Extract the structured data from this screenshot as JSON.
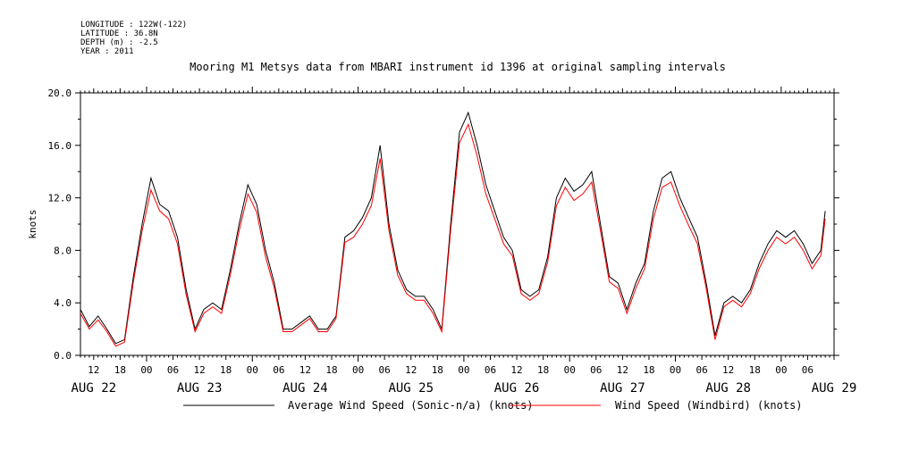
{
  "metadata": {
    "longitude": "LONGITUDE : 122W(-122)",
    "latitude": "LATITUDE : 36.8N",
    "depth": "DEPTH (m) : -2.5",
    "year": "YEAR : 2011"
  },
  "chart_data": {
    "type": "line",
    "title": "Mooring M1 Metsys data from MBARI instrument id 1396 at original sampling intervals",
    "ylabel": "knots",
    "xlabel": "",
    "ylim": [
      0,
      20
    ],
    "yticks": [
      "0.0",
      "4.0",
      "8.0",
      "12.0",
      "16.0",
      "20.0"
    ],
    "xrange_hours": [
      "2011-08-22 09:00",
      "2011-08-29 12:00"
    ],
    "hour_tick_labels": [
      {
        "t": "2011-08-22 12:00",
        "label": "12"
      },
      {
        "t": "2011-08-22 18:00",
        "label": "18"
      },
      {
        "t": "2011-08-23 00:00",
        "label": "00"
      },
      {
        "t": "2011-08-23 06:00",
        "label": "06"
      },
      {
        "t": "2011-08-23 12:00",
        "label": "12"
      },
      {
        "t": "2011-08-23 18:00",
        "label": "18"
      },
      {
        "t": "2011-08-24 00:00",
        "label": "00"
      },
      {
        "t": "2011-08-24 06:00",
        "label": "06"
      },
      {
        "t": "2011-08-24 12:00",
        "label": "12"
      },
      {
        "t": "2011-08-24 18:00",
        "label": "18"
      },
      {
        "t": "2011-08-25 00:00",
        "label": "00"
      },
      {
        "t": "2011-08-25 06:00",
        "label": "06"
      },
      {
        "t": "2011-08-25 12:00",
        "label": "12"
      },
      {
        "t": "2011-08-25 18:00",
        "label": "18"
      },
      {
        "t": "2011-08-26 00:00",
        "label": "00"
      },
      {
        "t": "2011-08-26 06:00",
        "label": "06"
      },
      {
        "t": "2011-08-26 12:00",
        "label": "12"
      },
      {
        "t": "2011-08-26 18:00",
        "label": "18"
      },
      {
        "t": "2011-08-27 00:00",
        "label": "00"
      },
      {
        "t": "2011-08-27 06:00",
        "label": "06"
      },
      {
        "t": "2011-08-27 12:00",
        "label": "12"
      },
      {
        "t": "2011-08-27 18:00",
        "label": "18"
      },
      {
        "t": "2011-08-28 00:00",
        "label": "00"
      },
      {
        "t": "2011-08-28 06:00",
        "label": "06"
      },
      {
        "t": "2011-08-28 12:00",
        "label": "12"
      },
      {
        "t": "2011-08-28 18:00",
        "label": "18"
      },
      {
        "t": "2011-08-29 00:00",
        "label": "00"
      },
      {
        "t": "2011-08-29 06:00",
        "label": "06"
      }
    ],
    "day_labels": [
      {
        "t": "2011-08-22 12:00",
        "label": "AUG 22"
      },
      {
        "t": "2011-08-23 12:00",
        "label": "AUG 23"
      },
      {
        "t": "2011-08-24 12:00",
        "label": "AUG 24"
      },
      {
        "t": "2011-08-25 12:00",
        "label": "AUG 25"
      },
      {
        "t": "2011-08-26 12:00",
        "label": "AUG 26"
      },
      {
        "t": "2011-08-27 12:00",
        "label": "AUG 27"
      },
      {
        "t": "2011-08-28 12:00",
        "label": "AUG 28"
      },
      {
        "t": "2011-08-29 12:00",
        "label": "AUG 29"
      }
    ],
    "legend_placement": "bottom",
    "series": [
      {
        "name": "Average Wind Speed (Sonic-n/a) (knots)",
        "color": "#000000",
        "points": [
          [
            "2011-08-22 09:00",
            3.5
          ],
          [
            "2011-08-22 11:00",
            2.2
          ],
          [
            "2011-08-22 13:00",
            3.0
          ],
          [
            "2011-08-22 15:00",
            2.0
          ],
          [
            "2011-08-22 17:00",
            0.9
          ],
          [
            "2011-08-22 19:00",
            1.2
          ],
          [
            "2011-08-22 21:00",
            6.0
          ],
          [
            "2011-08-22 23:00",
            10.0
          ],
          [
            "2011-08-23 01:00",
            13.5
          ],
          [
            "2011-08-23 03:00",
            11.5
          ],
          [
            "2011-08-23 05:00",
            11.0
          ],
          [
            "2011-08-23 07:00",
            9.0
          ],
          [
            "2011-08-23 09:00",
            5.0
          ],
          [
            "2011-08-23 11:00",
            2.0
          ],
          [
            "2011-08-23 13:00",
            3.5
          ],
          [
            "2011-08-23 15:00",
            4.0
          ],
          [
            "2011-08-23 17:00",
            3.5
          ],
          [
            "2011-08-23 19:00",
            6.5
          ],
          [
            "2011-08-23 21:00",
            10.0
          ],
          [
            "2011-08-23 23:00",
            13.0
          ],
          [
            "2011-08-24 01:00",
            11.5
          ],
          [
            "2011-08-24 03:00",
            8.0
          ],
          [
            "2011-08-24 05:00",
            5.5
          ],
          [
            "2011-08-24 07:00",
            2.0
          ],
          [
            "2011-08-24 09:00",
            2.0
          ],
          [
            "2011-08-24 11:00",
            2.5
          ],
          [
            "2011-08-24 13:00",
            3.0
          ],
          [
            "2011-08-24 15:00",
            2.0
          ],
          [
            "2011-08-24 17:00",
            2.0
          ],
          [
            "2011-08-24 19:00",
            3.0
          ],
          [
            "2011-08-24 21:00",
            9.0
          ],
          [
            "2011-08-24 23:00",
            9.5
          ],
          [
            "2011-08-25 01:00",
            10.5
          ],
          [
            "2011-08-25 03:00",
            12.0
          ],
          [
            "2011-08-25 05:00",
            16.0
          ],
          [
            "2011-08-25 07:00",
            10.0
          ],
          [
            "2011-08-25 09:00",
            6.5
          ],
          [
            "2011-08-25 11:00",
            5.0
          ],
          [
            "2011-08-25 13:00",
            4.5
          ],
          [
            "2011-08-25 15:00",
            4.5
          ],
          [
            "2011-08-25 17:00",
            3.5
          ],
          [
            "2011-08-25 19:00",
            2.0
          ],
          [
            "2011-08-25 21:00",
            10.0
          ],
          [
            "2011-08-25 23:00",
            17.0
          ],
          [
            "2011-08-26 01:00",
            18.5
          ],
          [
            "2011-08-26 03:00",
            16.0
          ],
          [
            "2011-08-26 05:00",
            13.0
          ],
          [
            "2011-08-26 07:00",
            11.0
          ],
          [
            "2011-08-26 09:00",
            9.0
          ],
          [
            "2011-08-26 11:00",
            8.0
          ],
          [
            "2011-08-26 13:00",
            5.0
          ],
          [
            "2011-08-26 15:00",
            4.5
          ],
          [
            "2011-08-26 17:00",
            5.0
          ],
          [
            "2011-08-26 19:00",
            7.5
          ],
          [
            "2011-08-26 21:00",
            12.0
          ],
          [
            "2011-08-26 23:00",
            13.5
          ],
          [
            "2011-08-27 01:00",
            12.5
          ],
          [
            "2011-08-27 03:00",
            13.0
          ],
          [
            "2011-08-27 05:00",
            14.0
          ],
          [
            "2011-08-27 07:00",
            10.0
          ],
          [
            "2011-08-27 09:00",
            6.0
          ],
          [
            "2011-08-27 11:00",
            5.5
          ],
          [
            "2011-08-27 13:00",
            3.5
          ],
          [
            "2011-08-27 15:00",
            5.5
          ],
          [
            "2011-08-27 17:00",
            7.0
          ],
          [
            "2011-08-27 19:00",
            11.0
          ],
          [
            "2011-08-27 21:00",
            13.5
          ],
          [
            "2011-08-27 23:00",
            14.0
          ],
          [
            "2011-08-28 01:00",
            12.0
          ],
          [
            "2011-08-28 03:00",
            10.5
          ],
          [
            "2011-08-28 05:00",
            9.0
          ],
          [
            "2011-08-28 07:00",
            5.5
          ],
          [
            "2011-08-28 09:00",
            1.5
          ],
          [
            "2011-08-28 11:00",
            4.0
          ],
          [
            "2011-08-28 13:00",
            4.5
          ],
          [
            "2011-08-28 15:00",
            4.0
          ],
          [
            "2011-08-28 17:00",
            5.0
          ],
          [
            "2011-08-28 19:00",
            7.0
          ],
          [
            "2011-08-28 21:00",
            8.5
          ],
          [
            "2011-08-28 23:00",
            9.5
          ],
          [
            "2011-08-29 01:00",
            9.0
          ],
          [
            "2011-08-29 03:00",
            9.5
          ],
          [
            "2011-08-29 05:00",
            8.5
          ],
          [
            "2011-08-29 07:00",
            7.0
          ],
          [
            "2011-08-29 09:00",
            8.0
          ],
          [
            "2011-08-29 10:00",
            11.0
          ]
        ]
      },
      {
        "name": "Wind Speed (Windbird) (knots)",
        "color": "#ff0000",
        "points": [
          [
            "2011-08-22 09:00",
            3.2
          ],
          [
            "2011-08-22 11:00",
            2.0
          ],
          [
            "2011-08-22 13:00",
            2.7
          ],
          [
            "2011-08-22 15:00",
            1.8
          ],
          [
            "2011-08-22 17:00",
            0.7
          ],
          [
            "2011-08-22 19:00",
            1.0
          ],
          [
            "2011-08-22 21:00",
            5.6
          ],
          [
            "2011-08-22 23:00",
            9.5
          ],
          [
            "2011-08-23 01:00",
            12.6
          ],
          [
            "2011-08-23 03:00",
            11.0
          ],
          [
            "2011-08-23 05:00",
            10.4
          ],
          [
            "2011-08-23 07:00",
            8.5
          ],
          [
            "2011-08-23 09:00",
            4.6
          ],
          [
            "2011-08-23 11:00",
            1.8
          ],
          [
            "2011-08-23 13:00",
            3.2
          ],
          [
            "2011-08-23 15:00",
            3.7
          ],
          [
            "2011-08-23 17:00",
            3.2
          ],
          [
            "2011-08-23 19:00",
            6.1
          ],
          [
            "2011-08-23 21:00",
            9.5
          ],
          [
            "2011-08-23 23:00",
            12.3
          ],
          [
            "2011-08-24 01:00",
            10.9
          ],
          [
            "2011-08-24 03:00",
            7.5
          ],
          [
            "2011-08-24 05:00",
            5.1
          ],
          [
            "2011-08-24 07:00",
            1.8
          ],
          [
            "2011-08-24 09:00",
            1.8
          ],
          [
            "2011-08-24 11:00",
            2.3
          ],
          [
            "2011-08-24 13:00",
            2.8
          ],
          [
            "2011-08-24 15:00",
            1.8
          ],
          [
            "2011-08-24 17:00",
            1.8
          ],
          [
            "2011-08-24 19:00",
            2.8
          ],
          [
            "2011-08-24 21:00",
            8.6
          ],
          [
            "2011-08-24 23:00",
            9.0
          ],
          [
            "2011-08-25 01:00",
            10.0
          ],
          [
            "2011-08-25 03:00",
            11.4
          ],
          [
            "2011-08-25 05:00",
            15.0
          ],
          [
            "2011-08-25 07:00",
            9.5
          ],
          [
            "2011-08-25 09:00",
            6.1
          ],
          [
            "2011-08-25 11:00",
            4.7
          ],
          [
            "2011-08-25 13:00",
            4.2
          ],
          [
            "2011-08-25 15:00",
            4.2
          ],
          [
            "2011-08-25 17:00",
            3.2
          ],
          [
            "2011-08-25 19:00",
            1.8
          ],
          [
            "2011-08-25 21:00",
            9.5
          ],
          [
            "2011-08-25 23:00",
            16.2
          ],
          [
            "2011-08-26 01:00",
            17.6
          ],
          [
            "2011-08-26 03:00",
            15.2
          ],
          [
            "2011-08-26 05:00",
            12.3
          ],
          [
            "2011-08-26 07:00",
            10.4
          ],
          [
            "2011-08-26 09:00",
            8.5
          ],
          [
            "2011-08-26 11:00",
            7.6
          ],
          [
            "2011-08-26 13:00",
            4.7
          ],
          [
            "2011-08-26 15:00",
            4.2
          ],
          [
            "2011-08-26 17:00",
            4.7
          ],
          [
            "2011-08-26 19:00",
            7.1
          ],
          [
            "2011-08-26 21:00",
            11.4
          ],
          [
            "2011-08-26 23:00",
            12.8
          ],
          [
            "2011-08-27 01:00",
            11.8
          ],
          [
            "2011-08-27 03:00",
            12.3
          ],
          [
            "2011-08-27 05:00",
            13.2
          ],
          [
            "2011-08-27 07:00",
            9.5
          ],
          [
            "2011-08-27 09:00",
            5.6
          ],
          [
            "2011-08-27 11:00",
            5.1
          ],
          [
            "2011-08-27 13:00",
            3.2
          ],
          [
            "2011-08-27 15:00",
            5.1
          ],
          [
            "2011-08-27 17:00",
            6.6
          ],
          [
            "2011-08-27 19:00",
            10.4
          ],
          [
            "2011-08-27 21:00",
            12.8
          ],
          [
            "2011-08-27 23:00",
            13.2
          ],
          [
            "2011-08-28 01:00",
            11.4
          ],
          [
            "2011-08-28 03:00",
            9.9
          ],
          [
            "2011-08-28 05:00",
            8.5
          ],
          [
            "2011-08-28 07:00",
            5.1
          ],
          [
            "2011-08-28 09:00",
            1.2
          ],
          [
            "2011-08-28 11:00",
            3.7
          ],
          [
            "2011-08-28 13:00",
            4.2
          ],
          [
            "2011-08-28 15:00",
            3.7
          ],
          [
            "2011-08-28 17:00",
            4.7
          ],
          [
            "2011-08-28 19:00",
            6.6
          ],
          [
            "2011-08-28 21:00",
            8.0
          ],
          [
            "2011-08-28 23:00",
            9.0
          ],
          [
            "2011-08-29 01:00",
            8.5
          ],
          [
            "2011-08-29 03:00",
            9.0
          ],
          [
            "2011-08-29 05:00",
            8.0
          ],
          [
            "2011-08-29 07:00",
            6.6
          ],
          [
            "2011-08-29 09:00",
            7.6
          ],
          [
            "2011-08-29 10:00",
            10.4
          ]
        ]
      }
    ]
  }
}
